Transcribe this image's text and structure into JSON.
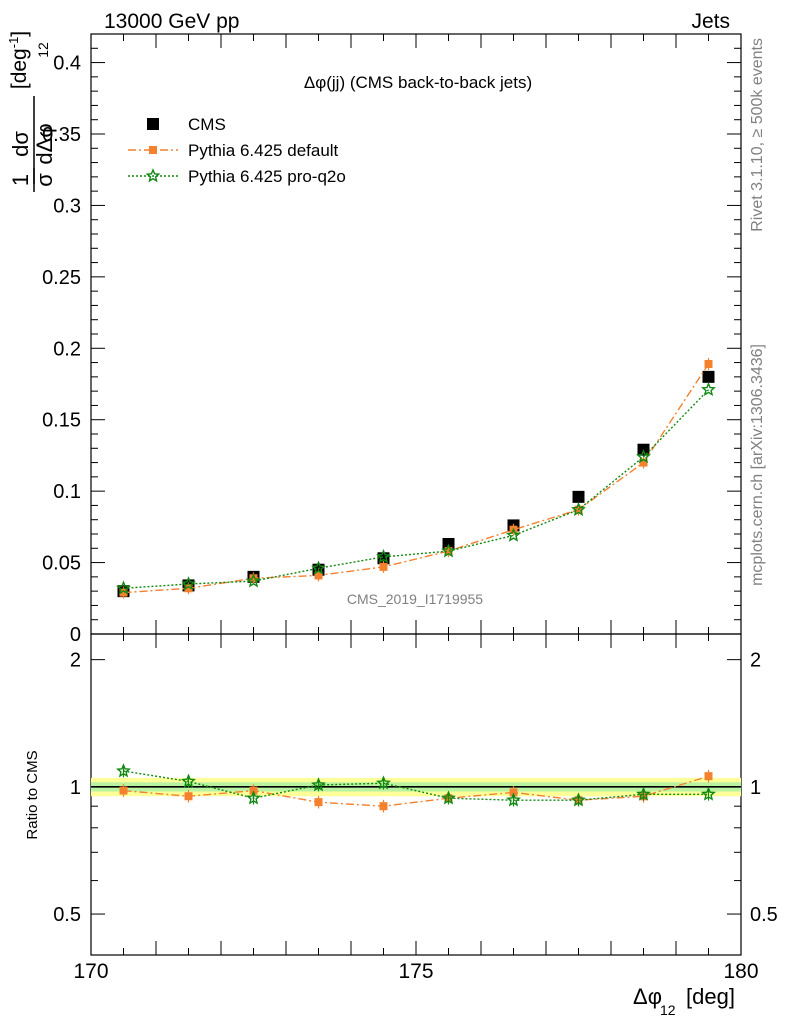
{
  "header": {
    "left": "13000 GeV pp",
    "right": "Jets"
  },
  "side_labels": {
    "rivet": "Rivet 3.1.10, ≥ 500k events",
    "mcplots": "mcplots.cern.ch [arXiv:1306.3436]"
  },
  "chart_data": [
    {
      "type": "scatter",
      "title": "Δφ(jj) (CMS back-to-back jets)",
      "watermark": "CMS_2019_I1719955",
      "ylabel": "1/σ dσ/dΔφ12 [deg^-1]",
      "ylim": [
        0,
        0.42
      ],
      "y_ticks": [
        "0",
        "0.05",
        "0.1",
        "0.15",
        "0.2",
        "0.25",
        "0.3",
        "0.35",
        "0.4"
      ],
      "y_tick_values": [
        0,
        0.05,
        0.1,
        0.15,
        0.2,
        0.25,
        0.3,
        0.35,
        0.4
      ],
      "xlim": [
        170,
        180
      ],
      "x": [
        170.5,
        171.5,
        172.5,
        173.5,
        174.5,
        175.5,
        176.5,
        177.5,
        178.5,
        179.5
      ],
      "legend_position": "top-left",
      "series": [
        {
          "name": "CMS",
          "marker": "square",
          "color": "#000000",
          "values": [
            0.03,
            0.034,
            0.04,
            0.045,
            0.053,
            0.063,
            0.076,
            0.096,
            0.129,
            0.18
          ]
        },
        {
          "name": "Pythia 6.425 default",
          "marker": "square-small",
          "color": "#f4812e",
          "line": "dashdot",
          "values": [
            0.029,
            0.032,
            0.039,
            0.041,
            0.047,
            0.058,
            0.073,
            0.087,
            0.12,
            0.189
          ]
        },
        {
          "name": "Pythia 6.425 pro-q2o",
          "marker": "star",
          "color": "#118811",
          "line": "dotted",
          "values": [
            0.032,
            0.035,
            0.037,
            0.046,
            0.054,
            0.058,
            0.069,
            0.087,
            0.124,
            0.171
          ]
        }
      ]
    },
    {
      "type": "scatter",
      "ylabel": "Ratio to CMS",
      "xlabel": "Δφ12 [deg]",
      "ylim": [
        0.4,
        2.3
      ],
      "y_log": true,
      "y_ticks": [
        "0.5",
        "1",
        "2"
      ],
      "y_tick_values": [
        0.5,
        1,
        2
      ],
      "x_ticks": [
        "170",
        "175",
        "180"
      ],
      "x_tick_values": [
        170,
        175,
        180
      ],
      "xlim": [
        170,
        180
      ],
      "x": [
        170.5,
        171.5,
        172.5,
        173.5,
        174.5,
        175.5,
        176.5,
        177.5,
        178.5,
        179.5
      ],
      "series": [
        {
          "name": "Pythia 6.425 default",
          "color": "#f4812e",
          "values": [
            0.98,
            0.95,
            0.98,
            0.92,
            0.9,
            0.94,
            0.97,
            0.93,
            0.95,
            1.06
          ]
        },
        {
          "name": "Pythia 6.425 pro-q2o",
          "color": "#118811",
          "values": [
            1.09,
            1.03,
            0.94,
            1.01,
            1.02,
            0.94,
            0.93,
            0.93,
            0.96,
            0.96
          ]
        }
      ]
    }
  ]
}
